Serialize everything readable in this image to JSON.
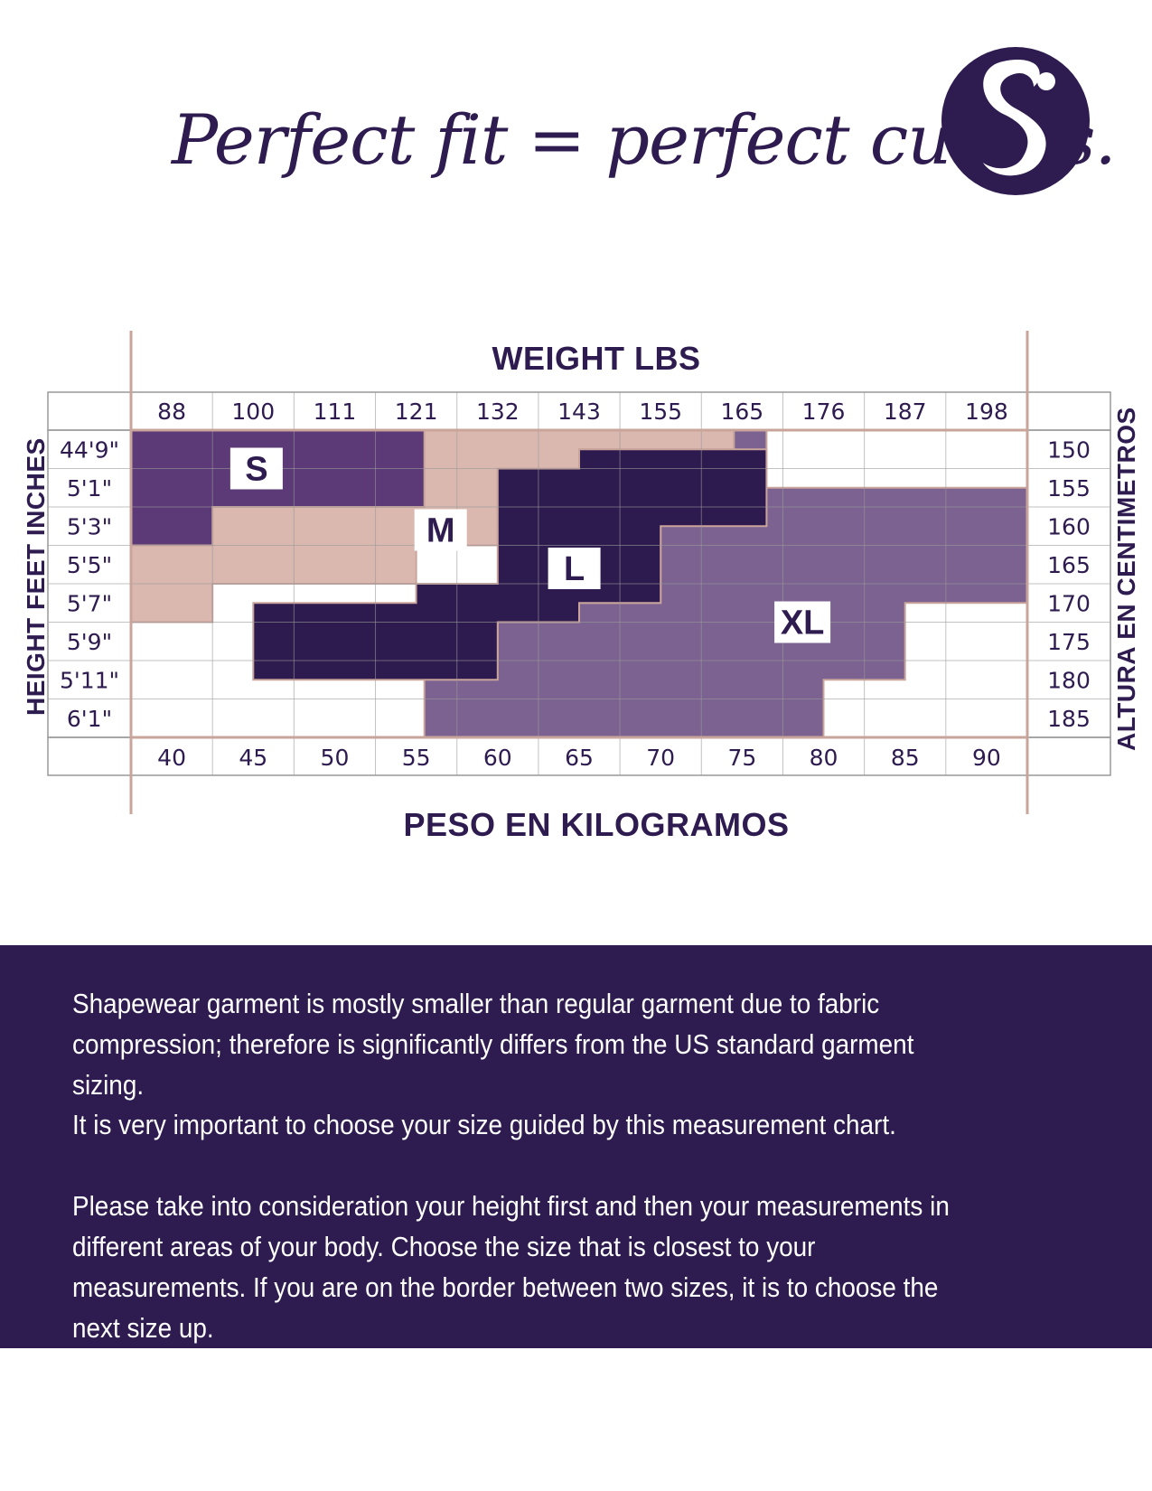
{
  "headline": "Perfect fit = perfect curves.",
  "brand": {
    "logo_icon": "s-curve-logo-icon",
    "color": "#2e1b4f"
  },
  "chart_data": {
    "type": "heatmap",
    "title_top": "WEIGHT LBS",
    "title_bottom": "PESO EN KILOGRAMOS",
    "ylabel_left": "HEIGHT FEET INCHES",
    "ylabel_right": "ALTURA EN CENTIMETROS",
    "x_top_labels": [
      "88",
      "100",
      "111",
      "121",
      "132",
      "143",
      "155",
      "165",
      "176",
      "187",
      "198"
    ],
    "x_bottom_labels": [
      "40",
      "45",
      "50",
      "55",
      "60",
      "65",
      "70",
      "75",
      "80",
      "85",
      "90"
    ],
    "x_kg": [
      40,
      45,
      50,
      55,
      60,
      65,
      70,
      75,
      80,
      85,
      90
    ],
    "y_left_labels": [
      "44'9\"",
      "5'1\"",
      "5'3\"",
      "5'5\"",
      "5'7\"",
      "5'9\"",
      "5'11\"",
      "6'1\""
    ],
    "y_right_labels": [
      "150",
      "155",
      "160",
      "165",
      "170",
      "175",
      "180",
      "185"
    ],
    "y_cm": [
      150,
      155,
      160,
      165,
      170,
      175,
      180,
      185
    ],
    "x_range_kg": [
      37.5,
      92.5
    ],
    "y_range_cm": [
      147.5,
      187.5
    ],
    "sizes": [
      {
        "label": "M",
        "color": "#dab8b0",
        "label_at": [
          56.5,
          160.5
        ],
        "polygon": [
          [
            37.5,
            147.5
          ],
          [
            74.5,
            147.5
          ],
          [
            74.5,
            150
          ],
          [
            65,
            150
          ],
          [
            65,
            152.5
          ],
          [
            60,
            152.5
          ],
          [
            60,
            162.5
          ],
          [
            55,
            162.5
          ],
          [
            55,
            167.5
          ],
          [
            42.5,
            167.5
          ],
          [
            42.5,
            172.5
          ],
          [
            37.5,
            172.5
          ]
        ]
      },
      {
        "label": "S",
        "color": "#5c3977",
        "label_at": [
          45.2,
          152.5
        ],
        "polygon": [
          [
            37.5,
            147.5
          ],
          [
            55.5,
            147.5
          ],
          [
            55.5,
            157.5
          ],
          [
            42.5,
            157.5
          ],
          [
            42.5,
            162.5
          ],
          [
            37.5,
            162.5
          ]
        ]
      },
      {
        "label": "XL",
        "color": "#7c6290",
        "label_at": [
          78.7,
          172.5
        ],
        "polygon": [
          [
            74.5,
            147.5
          ],
          [
            76.5,
            147.5
          ],
          [
            76.5,
            155
          ],
          [
            92.5,
            155
          ],
          [
            92.5,
            170
          ],
          [
            85,
            170
          ],
          [
            85,
            180
          ],
          [
            80,
            180
          ],
          [
            80,
            187.5
          ],
          [
            55.5,
            187.5
          ],
          [
            55.5,
            177.5
          ],
          [
            60,
            177.5
          ],
          [
            60,
            170
          ],
          [
            70,
            170
          ],
          [
            70,
            160
          ],
          [
            60,
            160
          ],
          [
            60,
            152.5
          ],
          [
            65,
            152.5
          ],
          [
            65,
            150
          ],
          [
            74.5,
            150
          ]
        ]
      },
      {
        "label": "L",
        "color": "#2d1a4f",
        "label_at": [
          64.7,
          165.5
        ],
        "polygon": [
          [
            65,
            150
          ],
          [
            76.5,
            150
          ],
          [
            76.5,
            160
          ],
          [
            70,
            160
          ],
          [
            70,
            170
          ],
          [
            65,
            170
          ],
          [
            65,
            172.5
          ],
          [
            60,
            172.5
          ],
          [
            60,
            180
          ],
          [
            45,
            180
          ],
          [
            45,
            170
          ],
          [
            55,
            170
          ],
          [
            55,
            167.5
          ],
          [
            60,
            167.5
          ],
          [
            60,
            152.5
          ],
          [
            65,
            152.5
          ]
        ]
      }
    ]
  },
  "info": {
    "paragraph_1": "Shapewear garment is mostly smaller than regular garment due to fabric compression; therefore is significantly differs from the US standard garment sizing.",
    "paragraph_2": "It is very important to choose your size guided by this measurement chart.",
    "paragraph_3": "Please take into consideration your height first and then your measurements in different areas of your body. Choose the size that is closest to your measurements. If you are on the border between two sizes, it is to choose the next size up."
  }
}
